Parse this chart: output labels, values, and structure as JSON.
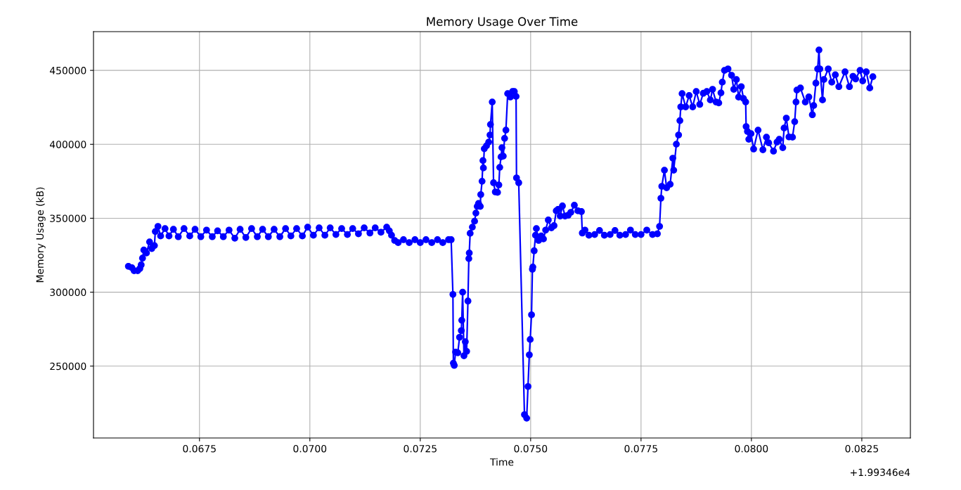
{
  "chart_data": {
    "type": "line",
    "title": "Memory Usage Over Time",
    "xlabel": "Time",
    "ylabel": "Memory Usage (kB)",
    "annotations": [
      "+1.99346e4"
    ],
    "series": [
      {
        "color": "#0000ff",
        "x": [
          0.06589,
          0.06597,
          0.06602,
          0.0661,
          0.06615,
          0.06618,
          0.06621,
          0.06624,
          0.0663,
          0.06637,
          0.06642,
          0.06648,
          0.0665,
          0.06656,
          0.06662,
          0.06672,
          0.06681,
          0.06691,
          0.06702,
          0.06715,
          0.06728,
          0.0674,
          0.06753,
          0.06766,
          0.06779,
          0.06791,
          0.06804,
          0.06817,
          0.0683,
          0.06842,
          0.06855,
          0.06868,
          0.06881,
          0.06893,
          0.06906,
          0.06919,
          0.06932,
          0.06945,
          0.06957,
          0.0697,
          0.06983,
          0.06995,
          0.07008,
          0.07021,
          0.07034,
          0.07046,
          0.07059,
          0.07072,
          0.07085,
          0.07097,
          0.0711,
          0.07123,
          0.07136,
          0.07148,
          0.07161,
          0.07174,
          0.0718,
          0.07185,
          0.07192,
          0.072,
          0.07212,
          0.07225,
          0.07238,
          0.0725,
          0.07263,
          0.07276,
          0.07289,
          0.07301,
          0.07314,
          0.0732,
          0.07324,
          0.07325,
          0.07327,
          0.0733,
          0.07335,
          0.07339,
          0.07343,
          0.07344,
          0.07346,
          0.07349,
          0.07352,
          0.07355,
          0.07358,
          0.0736,
          0.07361,
          0.07363,
          0.07368,
          0.07373,
          0.07376,
          0.07379,
          0.07382,
          0.07386,
          0.07387,
          0.0739,
          0.07392,
          0.07393,
          0.07395,
          0.074,
          0.07405,
          0.07408,
          0.07409,
          0.07413,
          0.07416,
          0.0742,
          0.07425,
          0.07428,
          0.0743,
          0.07433,
          0.07435,
          0.07438,
          0.07441,
          0.07444,
          0.07448,
          0.07454,
          0.07459,
          0.07463,
          0.07467,
          0.07468,
          0.07473,
          0.07486,
          0.07491,
          0.07494,
          0.07497,
          0.07499,
          0.07502,
          0.07504,
          0.07505,
          0.07508,
          0.07511,
          0.07513,
          0.07518,
          0.07524,
          0.07529,
          0.07534,
          0.0754,
          0.07547,
          0.07553,
          0.07558,
          0.07562,
          0.07567,
          0.07572,
          0.07578,
          0.07585,
          0.07591,
          0.07599,
          0.07607,
          0.07615,
          0.07617,
          0.07623,
          0.07632,
          0.07645,
          0.07656,
          0.07667,
          0.0768,
          0.07691,
          0.07702,
          0.07715,
          0.07726,
          0.07737,
          0.0775,
          0.07763,
          0.07776,
          0.07787,
          0.07792,
          0.07795,
          0.07797,
          0.07803,
          0.07808,
          0.07816,
          0.07822,
          0.07824,
          0.0783,
          0.07835,
          0.07838,
          0.0784,
          0.07843,
          0.07851,
          0.07859,
          0.07867,
          0.07875,
          0.07883,
          0.07891,
          0.07899,
          0.07907,
          0.07912,
          0.0792,
          0.07926,
          0.07931,
          0.07934,
          0.07939,
          0.07947,
          0.07955,
          0.0796,
          0.07966,
          0.07971,
          0.07977,
          0.07982,
          0.07987,
          0.07988,
          0.07991,
          0.07994,
          0.07999,
          0.08005,
          0.08015,
          0.08026,
          0.08034,
          0.08039,
          0.0805,
          0.08058,
          0.08063,
          0.08071,
          0.08074,
          0.08079,
          0.08085,
          0.08093,
          0.08098,
          0.08101,
          0.08103,
          0.08111,
          0.08122,
          0.0813,
          0.08138,
          0.08141,
          0.08146,
          0.0815,
          0.08153,
          0.08155,
          0.08161,
          0.08164,
          0.08174,
          0.08182,
          0.0819,
          0.08198,
          0.08212,
          0.08222,
          0.0823,
          0.08236,
          0.08246,
          0.08252,
          0.0826,
          0.08268,
          0.08275
        ],
        "values": [
          317500,
          316500,
          314500,
          314500,
          316000,
          318500,
          323000,
          328500,
          326500,
          334000,
          329500,
          331500,
          341000,
          344500,
          338000,
          343000,
          338000,
          342500,
          337500,
          343000,
          338000,
          342500,
          337500,
          342000,
          337500,
          341500,
          337500,
          342000,
          336500,
          342500,
          337000,
          343000,
          337500,
          342500,
          337500,
          342500,
          337500,
          343000,
          338000,
          343000,
          338000,
          344000,
          338500,
          343500,
          338500,
          343500,
          339000,
          343000,
          339000,
          343000,
          339500,
          343500,
          340000,
          343500,
          340500,
          344000,
          341500,
          338500,
          335000,
          333500,
          335500,
          333500,
          335500,
          333500,
          335500,
          333500,
          335500,
          333500,
          335500,
          335500,
          298500,
          252000,
          250500,
          259500,
          259000,
          269500,
          274000,
          281000,
          300000,
          257000,
          266500,
          260000,
          294000,
          322700,
          326500,
          339800,
          344000,
          348000,
          353500,
          358000,
          360000,
          358000,
          366000,
          375000,
          389000,
          384000,
          397000,
          399000,
          401500,
          406300,
          413400,
          428600,
          374000,
          367800,
          367500,
          372500,
          384400,
          391500,
          397700,
          392000,
          404000,
          409600,
          434300,
          432000,
          435700,
          435700,
          432400,
          377300,
          374000,
          217200,
          214800,
          236200,
          257600,
          268000,
          284700,
          315500,
          317000,
          328000,
          338500,
          343000,
          335000,
          338000,
          336000,
          342000,
          348800,
          343500,
          345000,
          355000,
          356000,
          351500,
          358300,
          351500,
          352000,
          354000,
          358800,
          355000,
          354500,
          340000,
          342000,
          338500,
          339000,
          341700,
          338500,
          339000,
          341700,
          338500,
          339000,
          342000,
          339000,
          339000,
          342000,
          339000,
          339500,
          344500,
          363500,
          371600,
          382500,
          370600,
          373000,
          390600,
          382500,
          400100,
          406300,
          416000,
          425300,
          434300,
          425300,
          433000,
          425300,
          435700,
          427000,
          434500,
          435700,
          430000,
          437200,
          428600,
          428000,
          434800,
          442000,
          450000,
          451000,
          446700,
          437200,
          443800,
          431900,
          439000,
          431000,
          428600,
          412000,
          408700,
          403400,
          407200,
          396800,
          409600,
          396300,
          404800,
          401000,
          395400,
          401500,
          403400,
          397700,
          411000,
          417700,
          405000,
          404800,
          415300,
          428600,
          436700,
          438100,
          428600,
          432000,
          420000,
          426200,
          441400,
          451000,
          463800,
          451000,
          430000,
          443800,
          451000,
          442000,
          447000,
          439000,
          449000,
          439000,
          446000,
          444200,
          450000,
          442900,
          449000,
          438100,
          445700
        ]
      }
    ],
    "xlim": [
      0.0651,
      0.0836
    ],
    "xticks": [
      0.0675,
      {
        "value": 0.07,
        "label": "0.0700"
      },
      0.0725,
      {
        "value": 0.075,
        "label": "0.0750"
      },
      0.0775,
      {
        "value": 0.08,
        "label": "0.0800"
      },
      0.0825
    ],
    "ylim": [
      201400,
      476200
    ],
    "yticks": [
      250000,
      300000,
      350000,
      400000,
      450000
    ],
    "grid": true,
    "marker": "circle",
    "line_style": "solid"
  }
}
